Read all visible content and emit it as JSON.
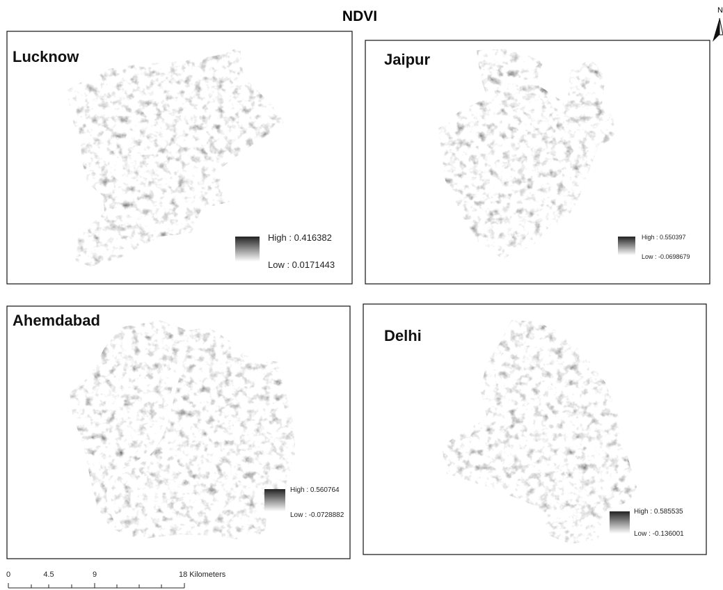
{
  "title": "NDVI",
  "north_arrow": "N",
  "panels": [
    {
      "name": "Lucknow",
      "legend": {
        "high": "High : 0.416382",
        "low": "Low : 0.0171443"
      }
    },
    {
      "name": "Jaipur",
      "legend": {
        "high": "High : 0.550397",
        "low": "Low : -0.0698679"
      }
    },
    {
      "name": "Ahemdabad",
      "legend": {
        "high": "High : 0.560764",
        "low": "Low : -0.0728882"
      }
    },
    {
      "name": "Delhi",
      "legend": {
        "high": "High : 0.585535",
        "low": "Low : -0.136001"
      }
    }
  ],
  "scale_bar": {
    "labels": [
      "0",
      "4.5",
      "9",
      "18 Kilometers"
    ]
  }
}
